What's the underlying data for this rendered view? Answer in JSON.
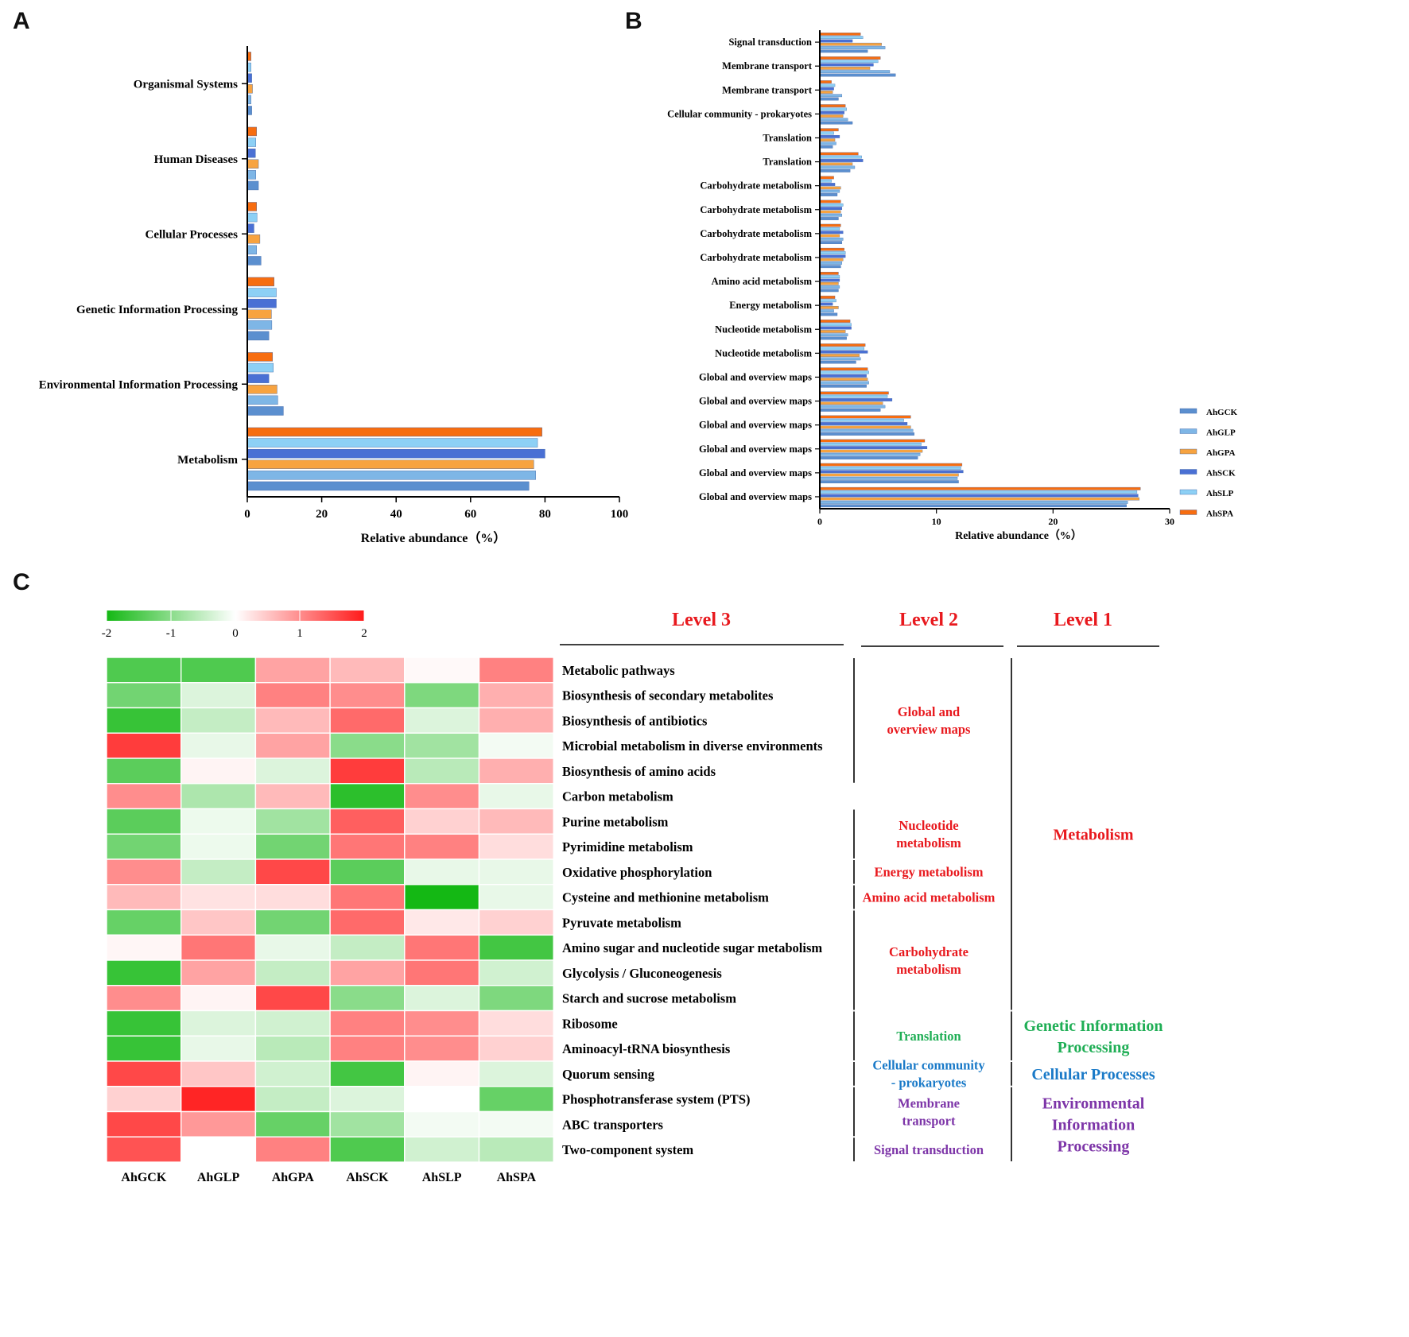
{
  "panels": {
    "a": "A",
    "b": "B",
    "c": "C"
  },
  "series_colors": {
    "AhGCK": "#5b8fcf",
    "AhGLP": "#7eb6e6",
    "AhGPA": "#f7a340",
    "AhSCK": "#4a70d4",
    "AhSLP": "#8dd0f5",
    "AhSPA": "#f76d10"
  },
  "heat_colors": {
    "low": "#14b814",
    "mid": "#ffffff",
    "high": "#ff1a1a"
  },
  "chart_data": [
    {
      "id": "A",
      "type": "bar",
      "orientation": "horizontal",
      "categories": [
        "Organismal Systems",
        "Human Diseases",
        "Cellular Processes",
        "Genetic Information Processing",
        "Environmental Information Processing",
        "Metabolism"
      ],
      "series": [
        {
          "name": "AhSPA",
          "values": [
            1.0,
            2.5,
            2.5,
            7.2,
            6.8,
            79.2
          ]
        },
        {
          "name": "AhSLP",
          "values": [
            1.0,
            2.3,
            2.6,
            7.8,
            7.0,
            78.0
          ]
        },
        {
          "name": "AhSCK",
          "values": [
            1.2,
            2.2,
            1.8,
            7.8,
            5.8,
            80.0
          ]
        },
        {
          "name": "AhGPA",
          "values": [
            1.4,
            3.0,
            3.4,
            6.5,
            8.0,
            77.0
          ]
        },
        {
          "name": "AhGLP",
          "values": [
            1.0,
            2.3,
            2.5,
            6.6,
            8.2,
            77.5
          ]
        },
        {
          "name": "AhGCK",
          "values": [
            1.2,
            3.0,
            3.7,
            5.8,
            9.7,
            75.7
          ]
        }
      ],
      "xlabel": "Relative abundance（%）",
      "xlim": [
        0,
        100
      ],
      "xticks": [
        0,
        20,
        40,
        60,
        80,
        100
      ]
    },
    {
      "id": "B",
      "type": "bar",
      "orientation": "horizontal",
      "categories": [
        "Signal transduction",
        "Membrane transport",
        "Membrane transport",
        "Cellular community - prokaryotes",
        "Translation",
        "Translation",
        "Carbohydrate metabolism",
        "Carbohydrate metabolism",
        "Carbohydrate metabolism",
        "Carbohydrate metabolism",
        "Amino acid metabolism",
        "Energy metabolism",
        "Nucleotide metabolism",
        "Nucleotide metabolism",
        "Global and overview maps",
        "Global and overview maps",
        "Global and overview maps",
        "Global and overview maps",
        "Global and overview maps",
        "Global and overview maps"
      ],
      "series": [
        {
          "name": "AhSPA",
          "values": [
            3.5,
            5.2,
            1.0,
            2.2,
            1.6,
            3.3,
            1.2,
            1.8,
            1.8,
            2.1,
            1.6,
            1.3,
            2.6,
            3.9,
            4.1,
            5.9,
            7.8,
            9.0,
            12.2,
            27.5
          ]
        },
        {
          "name": "AhSLP",
          "values": [
            3.7,
            5.0,
            1.3,
            2.3,
            1.2,
            3.6,
            1.0,
            2.0,
            1.7,
            2.2,
            1.7,
            1.4,
            2.7,
            3.8,
            4.2,
            5.8,
            7.2,
            8.7,
            12.1,
            27.2
          ]
        },
        {
          "name": "AhSCK",
          "values": [
            2.8,
            4.6,
            1.2,
            2.1,
            1.7,
            3.7,
            1.3,
            1.9,
            2.0,
            2.2,
            1.7,
            1.1,
            2.7,
            4.1,
            4.0,
            6.2,
            7.5,
            9.2,
            12.3,
            27.3
          ]
        },
        {
          "name": "AhGPA",
          "values": [
            5.3,
            4.3,
            1.1,
            2.0,
            1.3,
            2.8,
            1.8,
            1.8,
            1.7,
            2.0,
            1.6,
            1.6,
            2.2,
            3.4,
            4.1,
            5.4,
            7.8,
            8.8,
            11.9,
            27.4
          ]
        },
        {
          "name": "AhGLP",
          "values": [
            5.6,
            6.0,
            1.9,
            2.4,
            1.4,
            3.0,
            1.7,
            1.9,
            2.0,
            1.9,
            1.7,
            1.2,
            2.4,
            3.5,
            4.2,
            5.6,
            8.0,
            8.6,
            11.8,
            26.4
          ]
        },
        {
          "name": "AhGCK",
          "values": [
            4.1,
            6.5,
            1.6,
            2.8,
            1.1,
            2.6,
            1.5,
            1.6,
            1.9,
            1.8,
            1.6,
            1.5,
            2.3,
            3.1,
            4.0,
            5.2,
            8.1,
            8.4,
            11.9,
            26.3
          ]
        }
      ],
      "xlabel": "Relative abundance（%）",
      "xlim": [
        0,
        30
      ],
      "xticks": [
        0,
        10,
        20,
        30
      ],
      "legend": [
        "AhGCK",
        "AhGLP",
        "AhGPA",
        "AhSCK",
        "AhSLP",
        "AhSPA"
      ],
      "legend_position": "right"
    },
    {
      "id": "C",
      "type": "heatmap",
      "rows": [
        "Metabolic pathways",
        "Biosynthesis of secondary metabolites",
        "Biosynthesis of antibiotics",
        "Microbial metabolism in diverse environments",
        "Biosynthesis of amino acids",
        "Carbon metabolism",
        "Purine metabolism",
        "Pyrimidine metabolism",
        "Oxidative phosphorylation",
        "Cysteine and methionine metabolism",
        "Pyruvate metabolism",
        "Amino sugar and nucleotide sugar metabolism",
        "Glycolysis / Gluconeogenesis",
        "Starch and sucrose metabolism",
        "Ribosome",
        "Aminoacyl-tRNA biosynthesis",
        "Quorum sensing",
        "Phosphotransferase system (PTS)",
        "ABC transporters",
        "Two-component system"
      ],
      "columns": [
        "AhGCK",
        "AhGLP",
        "AhGPA",
        "AhSCK",
        "AhSLP",
        "AhSPA"
      ],
      "values": [
        [
          -1.5,
          -1.5,
          0.8,
          0.6,
          0.05,
          1.1
        ],
        [
          -1.2,
          -0.3,
          1.1,
          1.0,
          -1.1,
          0.7
        ],
        [
          -1.7,
          -0.5,
          0.6,
          1.3,
          -0.3,
          0.7
        ],
        [
          1.7,
          -0.2,
          0.8,
          -1.0,
          -0.8,
          -0.1
        ],
        [
          -1.4,
          0.1,
          -0.3,
          1.7,
          -0.6,
          0.7
        ],
        [
          1.0,
          -0.7,
          0.6,
          -1.8,
          1.0,
          -0.2
        ],
        [
          -1.4,
          -0.15,
          -0.8,
          1.4,
          0.4,
          0.6
        ],
        [
          -1.2,
          -0.15,
          -1.2,
          1.2,
          1.1,
          0.3
        ],
        [
          1.0,
          -0.5,
          1.6,
          -1.4,
          -0.2,
          -0.2
        ],
        [
          0.6,
          0.25,
          0.3,
          1.2,
          -2.0,
          -0.2
        ],
        [
          -1.3,
          0.5,
          -1.2,
          1.3,
          0.2,
          0.4
        ],
        [
          0.08,
          1.2,
          -0.2,
          -0.5,
          1.2,
          -1.6
        ],
        [
          -1.7,
          0.8,
          -0.5,
          0.8,
          1.2,
          -0.4
        ],
        [
          1.0,
          0.1,
          1.6,
          -1.0,
          -0.3,
          -1.1
        ],
        [
          -1.7,
          -0.3,
          -0.4,
          1.1,
          1.0,
          0.3
        ],
        [
          -1.7,
          -0.2,
          -0.6,
          1.1,
          1.0,
          0.4
        ],
        [
          1.6,
          0.5,
          -0.4,
          -1.6,
          0.1,
          -0.3
        ],
        [
          0.4,
          1.9,
          -0.5,
          -0.3,
          0.0,
          -1.3
        ],
        [
          1.6,
          0.9,
          -1.3,
          -0.8,
          -0.1,
          -0.1
        ],
        [
          1.5,
          0.0,
          1.1,
          -1.5,
          -0.4,
          -0.6
        ]
      ],
      "colorbar": {
        "min": -2,
        "max": 2,
        "ticks": [
          "-2",
          "-1",
          "0",
          "1",
          "2"
        ]
      },
      "headers": {
        "level3": "Level 3",
        "level2": "Level 2",
        "level1": "Level 1"
      },
      "level2_groups": [
        {
          "label": [
            "Global and",
            "overview maps"
          ],
          "start": 0,
          "end": 4,
          "color": "#e8191e"
        },
        {
          "label": [
            "Nucleotide",
            "metabolism"
          ],
          "start": 6,
          "end": 7,
          "color": "#e8191e"
        },
        {
          "label": [
            "Energy metabolism"
          ],
          "start": 8,
          "end": 8,
          "color": "#e8191e"
        },
        {
          "label": [
            "Amino acid metabolism"
          ],
          "start": 9,
          "end": 9,
          "color": "#e8191e"
        },
        {
          "label": [
            "Carbohydrate",
            "metabolism"
          ],
          "start": 10,
          "end": 13,
          "color": "#e8191e"
        },
        {
          "label": [
            "Translation"
          ],
          "start": 14,
          "end": 15,
          "color": "#1fae55"
        },
        {
          "label": [
            "Cellular community",
            "- prokaryotes"
          ],
          "start": 16,
          "end": 16,
          "color": "#1a7ac8"
        },
        {
          "label": [
            "Membrane",
            "transport"
          ],
          "start": 17,
          "end": 18,
          "color": "#7d35a8"
        },
        {
          "label": [
            "Signal transduction"
          ],
          "start": 19,
          "end": 19,
          "color": "#7d35a8"
        }
      ],
      "level1_groups": [
        {
          "label": [
            "Metabolism"
          ],
          "start": 0,
          "end": 13,
          "color": "#e8191e"
        },
        {
          "label": [
            "Genetic Information",
            "Processing"
          ],
          "start": 14,
          "end": 15,
          "color": "#1fae55"
        },
        {
          "label": [
            "Cellular Processes"
          ],
          "start": 16,
          "end": 16,
          "color": "#1a7ac8"
        },
        {
          "label": [
            "Environmental",
            "Information",
            "Processing"
          ],
          "start": 17,
          "end": 19,
          "color": "#7d35a8"
        }
      ]
    }
  ]
}
